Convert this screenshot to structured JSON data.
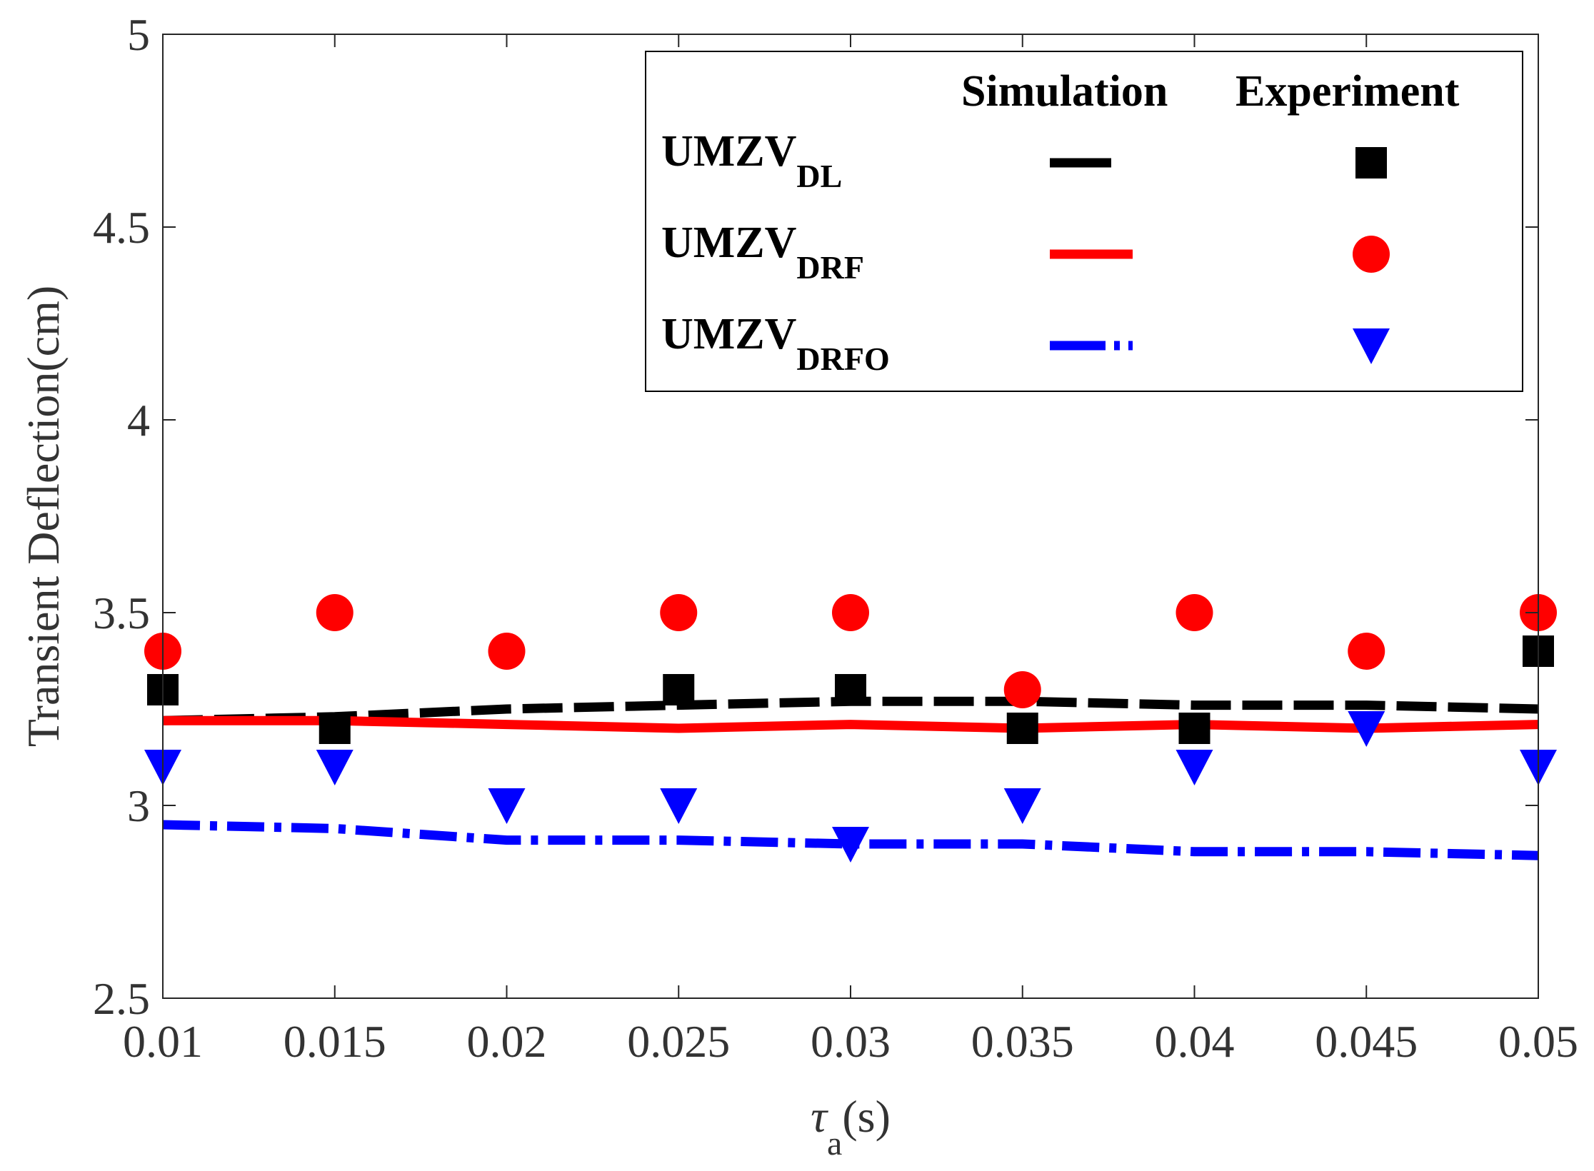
{
  "chart_data": {
    "type": "line",
    "title": "",
    "xlabel": "τ",
    "xlabel_sub": "a",
    "xlabel_unit": "(s)",
    "ylabel": "Transient Deflection(cm)",
    "xlim": [
      0.01,
      0.05
    ],
    "ylim": [
      2.5,
      5
    ],
    "xticks": [
      0.01,
      0.015,
      0.02,
      0.025,
      0.03,
      0.035,
      0.04,
      0.045,
      0.05
    ],
    "xtick_labels": [
      "0.01",
      "0.015",
      "0.02",
      "0.025",
      "0.03",
      "0.035",
      "0.04",
      "0.045",
      "0.05"
    ],
    "yticks": [
      2.5,
      3,
      3.5,
      4,
      4.5,
      5
    ],
    "ytick_labels": [
      "2.5",
      "3",
      "3.5",
      "4",
      "4.5",
      "5"
    ],
    "grid": false,
    "legend": {
      "placement": "top-right",
      "col_simulation": "Simulation",
      "col_experiment": "Experiment"
    },
    "series": [
      {
        "key": "dl",
        "name_main": "UMZV",
        "name_sub": "DL",
        "color": "#000000",
        "line_style": "dashed",
        "marker": "square",
        "sim_x": [
          0.01,
          0.015,
          0.02,
          0.025,
          0.03,
          0.035,
          0.04,
          0.045,
          0.05
        ],
        "sim_y": [
          3.22,
          3.23,
          3.25,
          3.26,
          3.27,
          3.27,
          3.26,
          3.26,
          3.25
        ],
        "exp_x": [
          0.01,
          0.015,
          0.025,
          0.03,
          0.035,
          0.04,
          0.05
        ],
        "exp_y": [
          3.3,
          3.2,
          3.3,
          3.3,
          3.2,
          3.2,
          3.4
        ]
      },
      {
        "key": "drf",
        "name_main": "UMZV",
        "name_sub": "DRF",
        "color": "#ff0000",
        "line_style": "solid",
        "marker": "circle",
        "sim_x": [
          0.01,
          0.015,
          0.02,
          0.025,
          0.03,
          0.035,
          0.04,
          0.045,
          0.05
        ],
        "sim_y": [
          3.22,
          3.22,
          3.21,
          3.2,
          3.21,
          3.2,
          3.21,
          3.2,
          3.21
        ],
        "exp_x": [
          0.01,
          0.015,
          0.02,
          0.025,
          0.03,
          0.035,
          0.04,
          0.045,
          0.05
        ],
        "exp_y": [
          3.4,
          3.5,
          3.4,
          3.5,
          3.5,
          3.3,
          3.5,
          3.4,
          3.5
        ]
      },
      {
        "key": "drfo",
        "name_main": "UMZV",
        "name_sub": "DRFO",
        "color": "#0000ff",
        "line_style": "dashdot",
        "marker": "triangle-down",
        "sim_x": [
          0.01,
          0.015,
          0.02,
          0.025,
          0.03,
          0.035,
          0.04,
          0.045,
          0.05
        ],
        "sim_y": [
          2.95,
          2.94,
          2.91,
          2.91,
          2.9,
          2.9,
          2.88,
          2.88,
          2.87
        ],
        "exp_x": [
          0.01,
          0.015,
          0.02,
          0.025,
          0.03,
          0.035,
          0.04,
          0.045,
          0.05
        ],
        "exp_y": [
          3.1,
          3.1,
          3.0,
          3.0,
          2.9,
          3.0,
          3.1,
          3.2,
          3.1
        ]
      }
    ]
  }
}
